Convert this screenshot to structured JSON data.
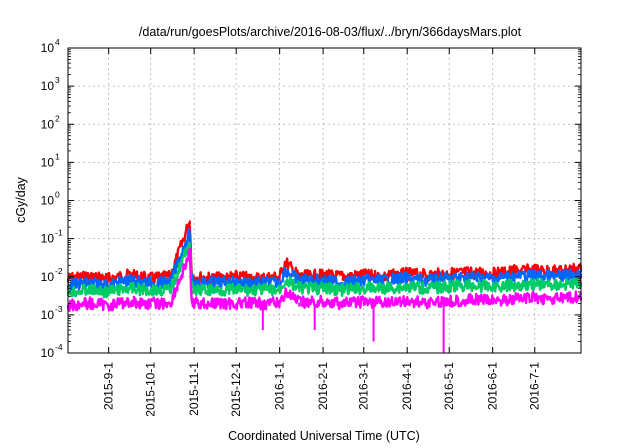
{
  "chart_data": {
    "type": "line",
    "title": "/data/run/goesPlots/archive/2016-08-03/flux/../bryn/366daysMars.plot",
    "xlabel": "Coordinated Universal Time (UTC)",
    "ylabel": "cGy/day",
    "xlim": [
      "2015-08-03",
      "2016-08-03"
    ],
    "ylim": [
      0.0001,
      10000
    ],
    "yscale": "log",
    "grid": true,
    "x_ticks": [
      "2015-9-1",
      "2015-10-1",
      "2015-11-1",
      "2015-12-1",
      "2016-1-1",
      "2016-2-1",
      "2016-3-1",
      "2016-4-1",
      "2016-5-1",
      "2016-6-1",
      "2016-7-1"
    ],
    "y_ticks": [
      {
        "base": "10",
        "exp": "4"
      },
      {
        "base": "10",
        "exp": "3"
      },
      {
        "base": "10",
        "exp": "2"
      },
      {
        "base": "10",
        "exp": "1"
      },
      {
        "base": "10",
        "exp": "0"
      },
      {
        "base": "10",
        "exp": "-1"
      },
      {
        "base": "10",
        "exp": "-2"
      },
      {
        "base": "10",
        "exp": "-3"
      },
      {
        "base": "10",
        "exp": "-4"
      }
    ],
    "x": [
      "2015-08-03",
      "2015-08-18",
      "2015-09-01",
      "2015-09-15",
      "2015-10-01",
      "2015-10-15",
      "2015-10-29",
      "2015-10-30",
      "2015-10-31",
      "2015-11-15",
      "2015-12-01",
      "2015-12-15",
      "2016-01-01",
      "2016-01-05",
      "2016-01-15",
      "2016-02-01",
      "2016-02-15",
      "2016-03-01",
      "2016-03-15",
      "2016-04-01",
      "2016-04-15",
      "2016-05-01",
      "2016-05-15",
      "2016-06-01",
      "2016-06-15",
      "2016-07-01",
      "2016-07-15",
      "2016-08-03"
    ],
    "series": [
      {
        "color": "#ff0000",
        "values": [
          0.009,
          0.01,
          0.009,
          0.011,
          0.009,
          0.01,
          0.3,
          0.015,
          0.01,
          0.009,
          0.01,
          0.009,
          0.01,
          0.025,
          0.01,
          0.011,
          0.01,
          0.011,
          0.01,
          0.012,
          0.011,
          0.012,
          0.013,
          0.012,
          0.014,
          0.015,
          0.014,
          0.017
        ]
      },
      {
        "color": "#0066ff",
        "values": [
          0.006,
          0.007,
          0.006,
          0.008,
          0.007,
          0.007,
          0.15,
          0.01,
          0.007,
          0.007,
          0.007,
          0.007,
          0.007,
          0.015,
          0.008,
          0.008,
          0.007,
          0.008,
          0.008,
          0.009,
          0.008,
          0.009,
          0.01,
          0.009,
          0.01,
          0.011,
          0.01,
          0.012
        ]
      },
      {
        "color": "#00cc66",
        "values": [
          0.004,
          0.0045,
          0.004,
          0.005,
          0.0045,
          0.0045,
          0.08,
          0.006,
          0.0045,
          0.0045,
          0.0045,
          0.0045,
          0.0045,
          0.008,
          0.005,
          0.005,
          0.0045,
          0.005,
          0.005,
          0.0055,
          0.005,
          0.0055,
          0.006,
          0.0055,
          0.006,
          0.0065,
          0.006,
          0.007
        ]
      },
      {
        "color": "#ff00ff",
        "values": [
          0.0018,
          0.002,
          0.0018,
          0.0022,
          0.002,
          0.002,
          0.04,
          0.003,
          0.002,
          0.002,
          0.002,
          0.002,
          0.002,
          0.004,
          0.0021,
          0.0022,
          0.002,
          0.0022,
          0.0021,
          0.0023,
          0.0021,
          0.0023,
          0.0025,
          0.0024,
          0.0026,
          0.0028,
          0.0026,
          0.003
        ]
      }
    ],
    "dips": [
      {
        "series": 3,
        "x": "2015-12-20",
        "value": 0.0004
      },
      {
        "series": 3,
        "x": "2016-01-26",
        "value": 0.0004
      },
      {
        "series": 3,
        "x": "2016-03-08",
        "value": 0.0002
      },
      {
        "series": 3,
        "x": "2016-04-27",
        "value": 0.0001
      }
    ]
  }
}
